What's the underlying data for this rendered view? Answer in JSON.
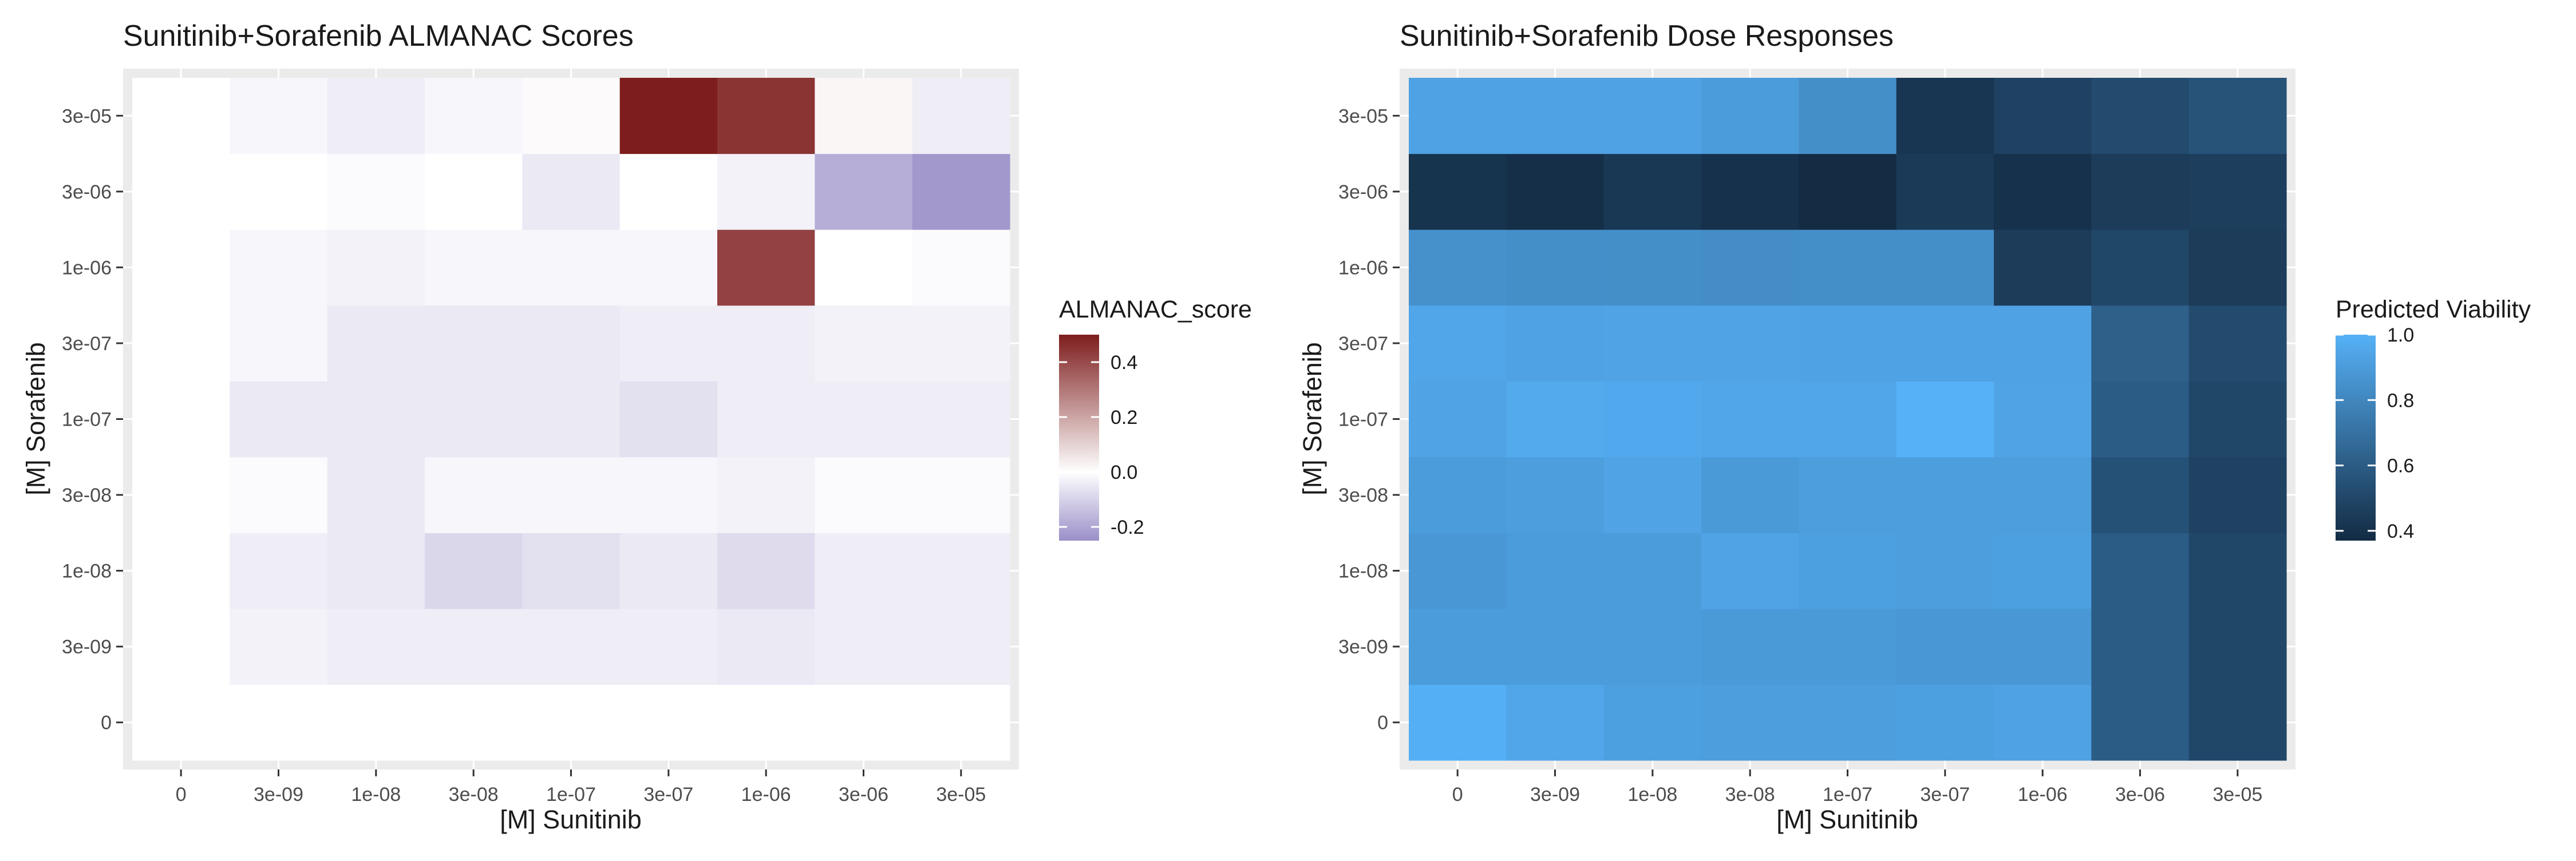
{
  "chart_data": [
    {
      "type": "heatmap",
      "title": "Sunitinib+Sorafenib ALMANAC Scores",
      "xlabel": "[M] Sunitinib",
      "ylabel": "[M] Sorafenib",
      "x_categories": [
        "0",
        "3e-09",
        "1e-08",
        "3e-08",
        "1e-07",
        "3e-07",
        "1e-06",
        "3e-06",
        "3e-05"
      ],
      "y_categories": [
        "0",
        "3e-09",
        "1e-08",
        "3e-08",
        "1e-07",
        "3e-07",
        "1e-06",
        "3e-06",
        "3e-05"
      ],
      "rows_order": "bottom-to-top",
      "values": [
        [
          0.0,
          0.0,
          0.0,
          0.0,
          0.0,
          0.0,
          0.0,
          0.0,
          0.0
        ],
        [
          0.0,
          -0.03,
          -0.04,
          -0.04,
          -0.04,
          -0.04,
          -0.05,
          -0.04,
          -0.04
        ],
        [
          0.0,
          -0.04,
          -0.05,
          -0.09,
          -0.07,
          -0.05,
          -0.08,
          -0.04,
          -0.04
        ],
        [
          0.0,
          -0.01,
          -0.05,
          -0.02,
          -0.02,
          -0.02,
          -0.03,
          -0.01,
          -0.01
        ],
        [
          0.0,
          -0.05,
          -0.05,
          -0.05,
          -0.05,
          -0.07,
          -0.04,
          -0.04,
          -0.04
        ],
        [
          0.0,
          -0.02,
          -0.05,
          -0.05,
          -0.05,
          -0.04,
          -0.04,
          -0.03,
          -0.03
        ],
        [
          0.0,
          -0.02,
          -0.03,
          -0.02,
          -0.02,
          -0.02,
          0.42,
          0.0,
          -0.01
        ],
        [
          0.0,
          0.0,
          -0.01,
          0.0,
          -0.05,
          0.0,
          -0.03,
          -0.18,
          -0.23
        ],
        [
          0.0,
          -0.02,
          -0.04,
          -0.02,
          0.01,
          0.5,
          0.45,
          0.02,
          -0.04
        ]
      ],
      "legend": {
        "title": "ALMANAC_score",
        "ticks": [
          0.4,
          0.2,
          0.0,
          -0.2
        ],
        "tick_labels": [
          "0.4",
          "0.2",
          "0.0",
          "-0.2"
        ],
        "min": -0.25,
        "max": 0.5,
        "colors": {
          "low": "#9b8fc8",
          "mid": "#ffffff",
          "high": "#7e1d1d"
        },
        "placement": "right"
      },
      "panel_background": "#ebebeb",
      "grid": true
    },
    {
      "type": "heatmap",
      "title": "Sunitinib+Sorafenib Dose Responses",
      "xlabel": "[M] Sunitinib",
      "ylabel": "[M] Sorafenib",
      "x_categories": [
        "0",
        "3e-09",
        "1e-08",
        "3e-08",
        "1e-07",
        "3e-07",
        "1e-06",
        "3e-06",
        "3e-05"
      ],
      "y_categories": [
        "0",
        "3e-09",
        "1e-08",
        "3e-08",
        "1e-07",
        "3e-07",
        "1e-06",
        "3e-06",
        "3e-05"
      ],
      "rows_order": "bottom-to-top",
      "values": [
        [
          0.99,
          0.95,
          0.92,
          0.91,
          0.91,
          0.92,
          0.93,
          0.6,
          0.5
        ],
        [
          0.9,
          0.9,
          0.9,
          0.89,
          0.89,
          0.88,
          0.88,
          0.6,
          0.5
        ],
        [
          0.88,
          0.9,
          0.9,
          0.94,
          0.92,
          0.91,
          0.92,
          0.6,
          0.5
        ],
        [
          0.9,
          0.91,
          0.94,
          0.89,
          0.91,
          0.91,
          0.91,
          0.55,
          0.48
        ],
        [
          0.94,
          0.97,
          0.96,
          0.95,
          0.95,
          1.0,
          0.94,
          0.6,
          0.5
        ],
        [
          0.95,
          0.93,
          0.94,
          0.94,
          0.93,
          0.93,
          0.93,
          0.62,
          0.52
        ],
        [
          0.85,
          0.84,
          0.84,
          0.83,
          0.84,
          0.84,
          0.45,
          0.5,
          0.45
        ],
        [
          0.41,
          0.39,
          0.43,
          0.4,
          0.37,
          0.44,
          0.4,
          0.45,
          0.46
        ],
        [
          0.93,
          0.93,
          0.93,
          0.9,
          0.84,
          0.42,
          0.48,
          0.52,
          0.56
        ]
      ],
      "legend": {
        "title": "Predicted Viability",
        "ticks": [
          1.0,
          0.8,
          0.6,
          0.4
        ],
        "tick_labels": [
          "1.0",
          "0.8",
          "0.6",
          "0.4"
        ],
        "min": 0.37,
        "max": 1.0,
        "colors": {
          "low": "#132b43",
          "high": "#56b1f7"
        },
        "placement": "right"
      },
      "panel_background": "#ebebeb",
      "grid": true
    }
  ]
}
